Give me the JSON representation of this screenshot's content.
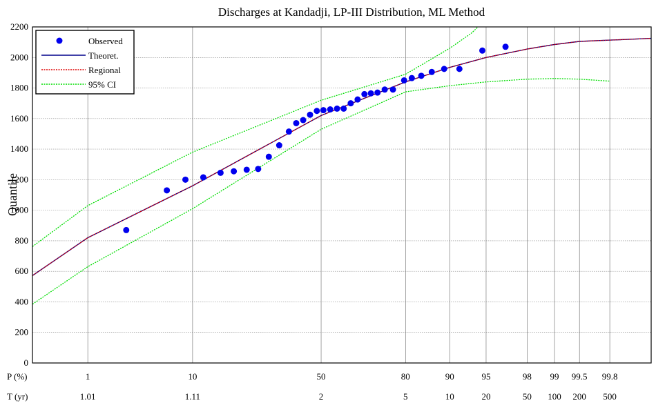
{
  "chart_data": {
    "type": "scatter",
    "title": "Discharges at Kandadji,  LP-III Distribution, ML Method",
    "ylabel": "Quantile",
    "ylim": [
      0,
      2200
    ],
    "yticks": [
      0,
      200,
      400,
      600,
      800,
      1000,
      1200,
      1400,
      1600,
      1800,
      2000,
      2200
    ],
    "x_scale": "normal-probability",
    "xlim_p": [
      0.2,
      99.95
    ],
    "p_row_label": "P (%)",
    "t_row_label": "T (yr)",
    "p_ticks": [
      {
        "p": 1,
        "label": "1"
      },
      {
        "p": 10,
        "label": "10"
      },
      {
        "p": 50,
        "label": "50"
      },
      {
        "p": 80,
        "label": "80"
      },
      {
        "p": 90,
        "label": "90"
      },
      {
        "p": 95,
        "label": "95"
      },
      {
        "p": 98,
        "label": "98"
      },
      {
        "p": 99,
        "label": "99"
      },
      {
        "p": 99.5,
        "label": "99.5"
      },
      {
        "p": 99.8,
        "label": "99.8"
      }
    ],
    "t_ticks": [
      {
        "p": 1,
        "label": "1.01"
      },
      {
        "p": 10,
        "label": "1.11"
      },
      {
        "p": 50,
        "label": "2"
      },
      {
        "p": 80,
        "label": "5"
      },
      {
        "p": 90,
        "label": "10"
      },
      {
        "p": 95,
        "label": "20"
      },
      {
        "p": 98,
        "label": "50"
      },
      {
        "p": 99,
        "label": "100"
      },
      {
        "p": 99.5,
        "label": "200"
      },
      {
        "p": 99.8,
        "label": "500"
      }
    ],
    "grid": true,
    "legend_position": "top-left",
    "series": [
      {
        "name": "Observed",
        "kind": "points",
        "color": "#0000ee",
        "points": [
          {
            "p": 2.6,
            "y": 870
          },
          {
            "p": 6.2,
            "y": 1130
          },
          {
            "p": 8.8,
            "y": 1200
          },
          {
            "p": 12.0,
            "y": 1215
          },
          {
            "p": 15.8,
            "y": 1245
          },
          {
            "p": 19.2,
            "y": 1255
          },
          {
            "p": 22.9,
            "y": 1265
          },
          {
            "p": 26.5,
            "y": 1270
          },
          {
            "p": 30.1,
            "y": 1350
          },
          {
            "p": 33.8,
            "y": 1425
          },
          {
            "p": 37.4,
            "y": 1515
          },
          {
            "p": 40.2,
            "y": 1570
          },
          {
            "p": 42.9,
            "y": 1590
          },
          {
            "p": 45.6,
            "y": 1625
          },
          {
            "p": 48.3,
            "y": 1650
          },
          {
            "p": 50.9,
            "y": 1655
          },
          {
            "p": 53.6,
            "y": 1660
          },
          {
            "p": 56.3,
            "y": 1665
          },
          {
            "p": 58.9,
            "y": 1665
          },
          {
            "p": 61.6,
            "y": 1700
          },
          {
            "p": 64.2,
            "y": 1725
          },
          {
            "p": 66.7,
            "y": 1760
          },
          {
            "p": 69.0,
            "y": 1765
          },
          {
            "p": 71.3,
            "y": 1770
          },
          {
            "p": 73.7,
            "y": 1790
          },
          {
            "p": 76.3,
            "y": 1790
          },
          {
            "p": 79.6,
            "y": 1850
          },
          {
            "p": 81.7,
            "y": 1865
          },
          {
            "p": 84.1,
            "y": 1880
          },
          {
            "p": 86.5,
            "y": 1905
          },
          {
            "p": 89.0,
            "y": 1925
          },
          {
            "p": 91.6,
            "y": 1925
          },
          {
            "p": 94.6,
            "y": 2045
          },
          {
            "p": 96.7,
            "y": 2070
          }
        ]
      },
      {
        "name": "Theoret.",
        "kind": "line",
        "color": "#00008b",
        "z_points": [
          {
            "z": -2.8782,
            "y": 572
          },
          {
            "z": -2.3264,
            "y": 820
          },
          {
            "z": -1.2816,
            "y": 1160
          },
          {
            "z": 0,
            "y": 1620
          },
          {
            "z": 0.8416,
            "y": 1840
          },
          {
            "z": 1.2816,
            "y": 1935
          },
          {
            "z": 1.6449,
            "y": 2000
          },
          {
            "z": 2.0537,
            "y": 2055
          },
          {
            "z": 2.3263,
            "y": 2085
          },
          {
            "z": 2.5758,
            "y": 2105
          },
          {
            "z": 3.2905,
            "y": 2125
          }
        ]
      },
      {
        "name": "Regional",
        "kind": "line",
        "dashed": true,
        "color": "#dd0000",
        "z_points": [
          {
            "z": -2.8782,
            "y": 572
          },
          {
            "z": -2.3264,
            "y": 820
          },
          {
            "z": -1.2816,
            "y": 1160
          },
          {
            "z": 0,
            "y": 1620
          },
          {
            "z": 0.8416,
            "y": 1840
          },
          {
            "z": 1.2816,
            "y": 1935
          },
          {
            "z": 1.6449,
            "y": 2000
          },
          {
            "z": 2.0537,
            "y": 2055
          },
          {
            "z": 2.3263,
            "y": 2085
          },
          {
            "z": 2.5758,
            "y": 2105
          },
          {
            "z": 3.2905,
            "y": 2125
          }
        ]
      },
      {
        "name": "95% CI",
        "kind": "line",
        "dashed": true,
        "color": "#00dd00",
        "z_points": [
          {
            "z": -2.8782,
            "y": 762
          },
          {
            "z": -2.3264,
            "y": 1030
          },
          {
            "z": -1.2816,
            "y": 1380
          },
          {
            "z": 0,
            "y": 1720
          },
          {
            "z": 0.8416,
            "y": 1890
          },
          {
            "z": 1.2816,
            "y": 2060
          },
          {
            "z": 1.5,
            "y": 2160
          },
          {
            "z": 1.58,
            "y": 2210
          }
        ],
        "z_points_lower": [
          {
            "z": -2.8782,
            "y": 385
          },
          {
            "z": -2.3264,
            "y": 630
          },
          {
            "z": -1.2816,
            "y": 1010
          },
          {
            "z": 0,
            "y": 1530
          },
          {
            "z": 0.8416,
            "y": 1775
          },
          {
            "z": 1.2816,
            "y": 1815
          },
          {
            "z": 1.6449,
            "y": 1840
          },
          {
            "z": 2.0537,
            "y": 1858
          },
          {
            "z": 2.3263,
            "y": 1862
          },
          {
            "z": 2.5758,
            "y": 1858
          },
          {
            "z": 2.88,
            "y": 1845
          }
        ]
      }
    ]
  }
}
